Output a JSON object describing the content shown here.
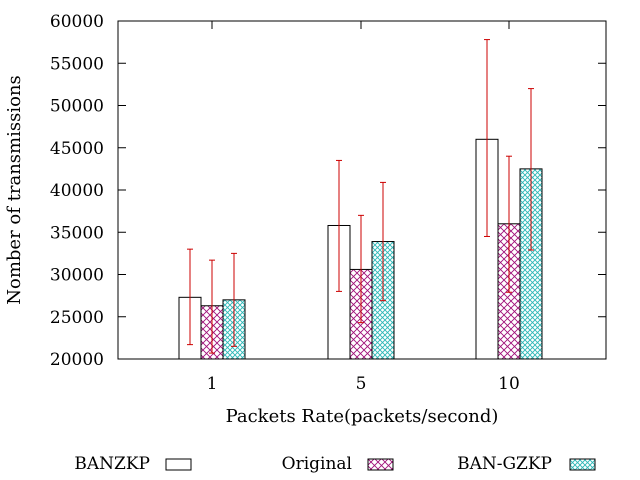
{
  "chart_data": {
    "type": "bar",
    "title": "",
    "xlabel": "Packets Rate(packets/second)",
    "ylabel": "Nomber of transmissions",
    "categories": [
      "1",
      "5",
      "10"
    ],
    "ylim": [
      20000,
      60000
    ],
    "yticks": [
      20000,
      25000,
      30000,
      35000,
      40000,
      45000,
      50000,
      55000,
      60000
    ],
    "yticks_labels": [
      "20000",
      "25000",
      "30000",
      "35000",
      "40000",
      "45000",
      "50000",
      "55000",
      "60000"
    ],
    "legend_position": "bottom",
    "series": [
      {
        "name": "BANZKP",
        "pattern": "none",
        "color": "#ffffff",
        "values": [
          27300,
          35800,
          46000
        ],
        "err_low": [
          21700,
          28000,
          34500
        ],
        "err_high": [
          33000,
          43500,
          57800
        ]
      },
      {
        "name": "Original",
        "pattern": "crosshatch",
        "color": "#a0107a",
        "values": [
          26300,
          30600,
          36000
        ],
        "err_low": [
          20700,
          24300,
          27900
        ],
        "err_high": [
          31700,
          37000,
          44000
        ]
      },
      {
        "name": "BAN-GZKP",
        "pattern": "crosshatch",
        "color": "#2cb8b8",
        "values": [
          27000,
          33900,
          42500
        ],
        "err_low": [
          21500,
          26900,
          32900
        ],
        "err_high": [
          32500,
          40900,
          52000
        ]
      }
    ],
    "error_bar_color": "#cc0000"
  }
}
